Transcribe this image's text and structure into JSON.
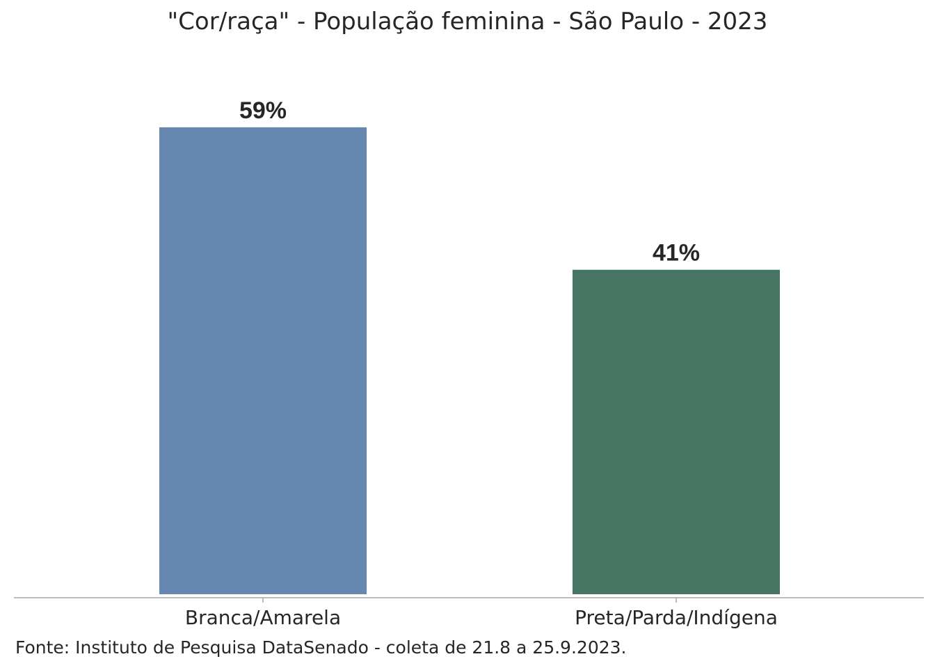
{
  "source": "Fonte: Instituto de Pesquisa DataSenado - coleta de 21.8 a 25.9.2023.",
  "chart_data": {
    "type": "bar",
    "title": "\"Cor/raça\" - População feminina - São Paulo - 2023",
    "categories": [
      "Branca/Amarela",
      "Preta/Parda/Indígena"
    ],
    "values": [
      59,
      41
    ],
    "value_labels": [
      "59%",
      "41%"
    ],
    "colors": [
      "#6688b0",
      "#467563"
    ],
    "axis_color": "#a6a6a6",
    "xlabel": "",
    "ylabel": "",
    "ylim": [
      0,
      60
    ],
    "grid": false,
    "legend": "none"
  }
}
